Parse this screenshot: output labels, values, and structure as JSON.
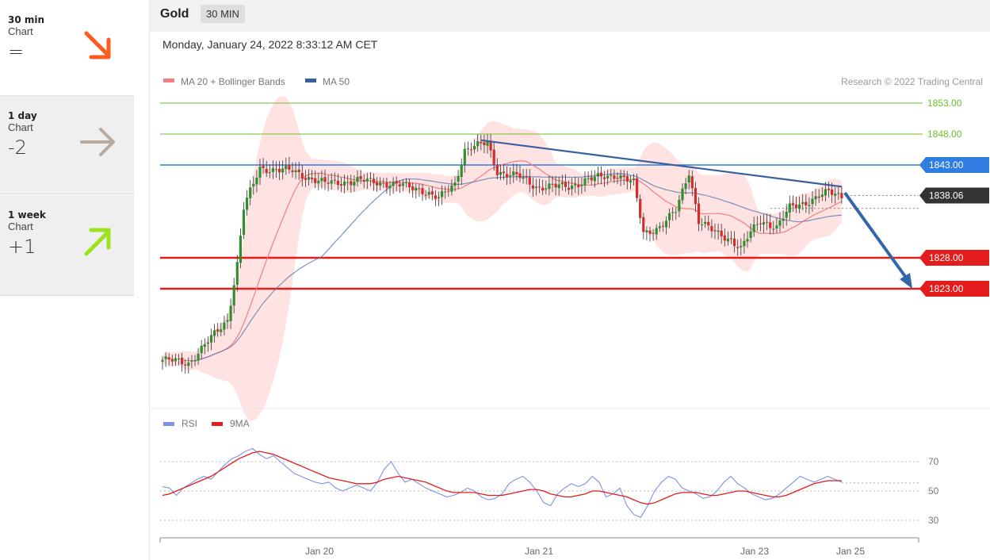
{
  "sidebar": {
    "cards": [
      {
        "period": "30 min",
        "kind": "Chart",
        "score": "=",
        "direction": "down",
        "color": "#ff5a1f"
      },
      {
        "period": "1 day",
        "kind": "Chart",
        "score": "-2",
        "direction": "right",
        "color": "#b8aaa0"
      },
      {
        "period": "1 week",
        "kind": "Chart",
        "score": "+1",
        "direction": "up",
        "color": "#9be31c"
      }
    ]
  },
  "header": {
    "symbol": "Gold",
    "timeframe": "30 MIN"
  },
  "datetime": "Monday, January 24, 2022 8:33:12 AM CET",
  "legend": {
    "ma20": "MA 20 + Bollinger Bands",
    "ma50": "MA 50",
    "credit": "Research © 2022 Trading Central"
  },
  "rsi_legend": {
    "rsi": "RSI",
    "ma": "9MA"
  },
  "levels": [
    {
      "label": "1853.00",
      "value": 1853,
      "kind": "resistance-green",
      "color": "#6cbf2a"
    },
    {
      "label": "1848.00",
      "value": 1848,
      "kind": "resistance-green",
      "color": "#6cbf2a"
    },
    {
      "label": "1843.00",
      "value": 1843,
      "kind": "blue",
      "color": "#2f7de1"
    },
    {
      "label": "1838.06",
      "value": 1838.06,
      "kind": "last",
      "color": "#333333"
    },
    {
      "label": "1828.00",
      "value": 1828,
      "kind": "support-red",
      "color": "#e41c1c"
    },
    {
      "label": "1823.00",
      "value": 1823,
      "kind": "support-red",
      "color": "#e41c1c"
    }
  ],
  "chart_data": [
    {
      "type": "candlestick",
      "title": "Gold",
      "timeframe": "30 MIN",
      "x_tick_labels": [
        "Jan 20",
        "Jan 21",
        "Jan 23",
        "Jan 25"
      ],
      "series": [
        {
          "name": "MA 20 + Bollinger Bands",
          "color": "#f08080"
        },
        {
          "name": "MA 50",
          "color": "#3a5fa0"
        }
      ],
      "price_anchors": [
        {
          "i": 0,
          "price": 1811.5
        },
        {
          "i": 8,
          "price": 1811
        },
        {
          "i": 15,
          "price": 1815
        },
        {
          "i": 20,
          "price": 1818
        },
        {
          "i": 23,
          "price": 1827
        },
        {
          "i": 25,
          "price": 1836
        },
        {
          "i": 30,
          "price": 1842.5
        },
        {
          "i": 40,
          "price": 1842
        },
        {
          "i": 50,
          "price": 1840
        },
        {
          "i": 60,
          "price": 1840.5
        },
        {
          "i": 70,
          "price": 1840
        },
        {
          "i": 80,
          "price": 1839
        },
        {
          "i": 85,
          "price": 1837.5
        },
        {
          "i": 90,
          "price": 1840
        },
        {
          "i": 93,
          "price": 1845.5
        },
        {
          "i": 100,
          "price": 1846.5
        },
        {
          "i": 103,
          "price": 1842
        },
        {
          "i": 110,
          "price": 1841
        },
        {
          "i": 115,
          "price": 1839.5
        },
        {
          "i": 125,
          "price": 1839.5
        },
        {
          "i": 130,
          "price": 1840.5
        },
        {
          "i": 140,
          "price": 1841.5
        },
        {
          "i": 145,
          "price": 1840
        },
        {
          "i": 148,
          "price": 1832
        },
        {
          "i": 153,
          "price": 1833
        },
        {
          "i": 158,
          "price": 1835.5
        },
        {
          "i": 162,
          "price": 1842
        },
        {
          "i": 165,
          "price": 1834
        },
        {
          "i": 170,
          "price": 1832
        },
        {
          "i": 175,
          "price": 1831
        },
        {
          "i": 178,
          "price": 1829.5
        },
        {
          "i": 181,
          "price": 1832
        },
        {
          "i": 184,
          "price": 1834
        },
        {
          "i": 189,
          "price": 1833
        },
        {
          "i": 193,
          "price": 1836
        },
        {
          "i": 198,
          "price": 1837
        },
        {
          "i": 202,
          "price": 1838
        },
        {
          "i": 205,
          "price": 1838.5
        },
        {
          "i": 209,
          "price": 1838
        }
      ],
      "trendline": {
        "from": {
          "i": 98,
          "price": 1847
        },
        "to": {
          "i": 209,
          "price": 1839.5
        }
      },
      "forecast_arrow": {
        "from_price": 1838.5,
        "to_price": 1823
      }
    },
    {
      "type": "line",
      "title": "RSI",
      "y_ticks": [
        70,
        50,
        30
      ],
      "series": [
        {
          "name": "RSI",
          "color": "#7b93e0",
          "values": [
            53,
            52,
            47,
            52,
            55,
            58,
            60,
            58,
            63,
            68,
            72,
            74,
            77,
            79,
            75,
            72,
            74,
            70,
            66,
            62,
            60,
            58,
            56,
            55,
            56,
            52,
            50,
            52,
            54,
            52,
            50,
            56,
            65,
            70,
            62,
            56,
            58,
            55,
            52,
            50,
            48,
            46,
            47,
            49,
            52,
            50,
            46,
            44,
            45,
            48,
            55,
            58,
            60,
            56,
            50,
            42,
            40,
            48,
            52,
            55,
            53,
            55,
            60,
            56,
            46,
            48,
            52,
            40,
            34,
            32,
            40,
            50,
            56,
            60,
            58,
            52,
            50,
            48,
            45,
            46,
            50,
            56,
            60,
            55,
            52,
            48,
            46,
            44,
            45,
            48,
            52,
            56,
            60,
            58,
            56,
            58,
            60,
            58,
            56
          ]
        },
        {
          "name": "9MA",
          "color": "#e41c1c",
          "values": [
            47,
            48,
            50,
            52,
            54,
            56,
            58,
            60,
            63,
            66,
            69,
            72,
            74,
            76,
            77,
            76,
            75,
            73,
            71,
            69,
            67,
            65,
            63,
            61,
            59,
            58,
            57,
            56,
            55,
            55,
            55,
            56,
            58,
            59,
            60,
            59,
            58,
            57,
            56,
            54,
            52,
            50,
            49,
            49,
            49,
            49,
            48,
            47,
            47,
            47,
            48,
            49,
            50,
            51,
            51,
            50,
            48,
            47,
            46,
            46,
            47,
            48,
            50,
            50,
            49,
            48,
            47,
            46,
            44,
            42,
            41,
            42,
            44,
            46,
            48,
            49,
            49,
            49,
            48,
            47,
            47,
            48,
            49,
            50,
            50,
            49,
            48,
            47,
            46,
            46,
            47,
            49,
            51,
            53,
            55,
            56,
            57,
            57,
            57
          ]
        }
      ]
    }
  ]
}
